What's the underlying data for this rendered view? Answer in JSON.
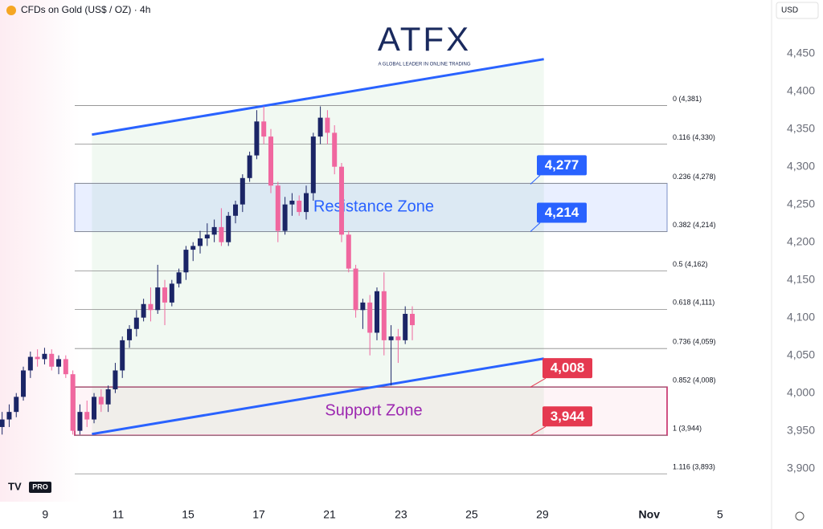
{
  "chart_data": {
    "type": "candlestick",
    "title": "CFDs on Gold (US$ / OZ) · 4h",
    "currency": "USD",
    "brand": "ATFX",
    "brand_tagline": "A GLOBAL LEADER IN ONLINE TRADING",
    "badge": "PRO",
    "up_color": "#1b2566",
    "down_color": "#f0679f",
    "candles": {
      "open": [
        3955,
        3965,
        3975,
        3995,
        4030,
        4048,
        4045,
        4052,
        4035,
        4045,
        4025,
        3950,
        3975,
        3965,
        3995,
        3985,
        4005,
        4030,
        4070,
        4085,
        4100,
        4118,
        4110,
        4140,
        4120,
        4145,
        4160,
        4190,
        4195,
        4205,
        4210,
        4220,
        4200,
        4235,
        4250,
        4285,
        4315,
        4360,
        4340,
        4275,
        4215,
        4250,
        4255,
        4240,
        4265,
        4340,
        4365,
        4345,
        4300,
        4210,
        4165,
        4110,
        4120,
        4080,
        4135,
        4070,
        4075,
        4070,
        4105
      ],
      "high": [
        3975,
        3985,
        4000,
        4035,
        4055,
        4058,
        4060,
        4058,
        4050,
        4050,
        4030,
        3985,
        3990,
        4000,
        4005,
        4010,
        4040,
        4075,
        4090,
        4110,
        4125,
        4140,
        4170,
        4150,
        4150,
        4165,
        4195,
        4200,
        4215,
        4225,
        4230,
        4245,
        4240,
        4255,
        4290,
        4320,
        4375,
        4380,
        4350,
        4280,
        4260,
        4265,
        4262,
        4275,
        4345,
        4380,
        4375,
        4355,
        4305,
        4215,
        4170,
        4125,
        4130,
        4140,
        4160,
        4090,
        4085,
        4115,
        4115
      ],
      "low": [
        3945,
        3955,
        3968,
        3990,
        4020,
        4035,
        4038,
        4030,
        4025,
        4020,
        3945,
        3945,
        3955,
        3960,
        3975,
        3975,
        4000,
        4020,
        4060,
        4075,
        4095,
        4095,
        4105,
        4090,
        4115,
        4140,
        4150,
        4175,
        4185,
        4195,
        4200,
        4195,
        4195,
        4225,
        4240,
        4280,
        4310,
        4330,
        4265,
        4200,
        4210,
        4235,
        4235,
        4230,
        4255,
        4330,
        4330,
        4290,
        4200,
        4160,
        4100,
        4085,
        4050,
        4070,
        4050,
        4010,
        4040,
        4065,
        4070
      ],
      "close": [
        3965,
        3975,
        3995,
        4030,
        4048,
        4045,
        4052,
        4035,
        4045,
        4025,
        3950,
        3975,
        3965,
        3995,
        3985,
        4005,
        4030,
        4070,
        4085,
        4100,
        4118,
        4110,
        4140,
        4120,
        4145,
        4160,
        4190,
        4195,
        4205,
        4210,
        4220,
        4200,
        4235,
        4250,
        4285,
        4315,
        4360,
        4340,
        4275,
        4215,
        4250,
        4255,
        4240,
        4265,
        4340,
        4365,
        4345,
        4300,
        4210,
        4165,
        4110,
        4120,
        4080,
        4135,
        4070,
        4075,
        4070,
        4105,
        4090
      ]
    },
    "xlim": [
      -0.3,
      108.8
    ],
    "xticks": [
      {
        "value": 6.1,
        "label": "9"
      },
      {
        "value": 16.4,
        "label": "11"
      },
      {
        "value": 26.3,
        "label": "15"
      },
      {
        "value": 36.3,
        "label": "17"
      },
      {
        "value": 46.3,
        "label": "21"
      },
      {
        "value": 56.4,
        "label": "23"
      },
      {
        "value": 66.4,
        "label": "25"
      },
      {
        "value": 76.4,
        "label": "29"
      },
      {
        "value": 91.5,
        "label": "Nov"
      },
      {
        "value": 101.5,
        "label": "5"
      }
    ],
    "ylim": [
      3856,
      4521
    ],
    "yticks": [
      {
        "value": 3900,
        "label": "3,900"
      },
      {
        "value": 3950,
        "label": "3,950"
      },
      {
        "value": 4000,
        "label": "4,000"
      },
      {
        "value": 4050,
        "label": "4,050"
      },
      {
        "value": 4100,
        "label": "4,100"
      },
      {
        "value": 4150,
        "label": "4,150"
      },
      {
        "value": 4200,
        "label": "4,200"
      },
      {
        "value": 4250,
        "label": "4,250"
      },
      {
        "value": 4300,
        "label": "4,300"
      },
      {
        "value": 4350,
        "label": "4,350"
      },
      {
        "value": 4400,
        "label": "4,400"
      },
      {
        "value": 4450,
        "label": "4,450"
      }
    ],
    "fib_levels": [
      {
        "value": 4381,
        "label": "0 (4,381)"
      },
      {
        "value": 4330,
        "label": "0.116 (4,330)"
      },
      {
        "value": 4278,
        "label": "0.236 (4,278)"
      },
      {
        "value": 4214,
        "label": "0.382 (4,214)"
      },
      {
        "value": 4162,
        "label": "0.5 (4,162)"
      },
      {
        "value": 4111,
        "label": "0.618 (4,111)"
      },
      {
        "value": 4059,
        "label": "0.736 (4,059)"
      },
      {
        "value": 4008,
        "label": "0.852 (4,008)"
      },
      {
        "value": 3944,
        "label": "1 (3,944)"
      },
      {
        "value": 3893,
        "label": "1.116 (3,893)"
      }
    ],
    "zones": [
      {
        "label": "Resistance Zone",
        "low": 4214,
        "high": 4278
      },
      {
        "label": "Support Zone",
        "low": 3944,
        "high": 4008
      }
    ],
    "channel": [
      {
        "x": [
          12.7,
          76.6
        ],
        "y": [
          4342.6,
          4442.6
        ]
      },
      {
        "x": [
          12.7,
          76.6
        ],
        "y": [
          3945.7,
          4045.7
        ]
      }
    ],
    "callouts": [
      {
        "value": 4277,
        "label": "4,277",
        "color": "#2962ff"
      },
      {
        "value": 4214,
        "label": "4,214",
        "color": "#2962ff"
      },
      {
        "value": 4008,
        "label": "4,008",
        "color": "#e53950"
      },
      {
        "value": 3944,
        "label": "3,944",
        "color": "#e53950"
      }
    ]
  }
}
